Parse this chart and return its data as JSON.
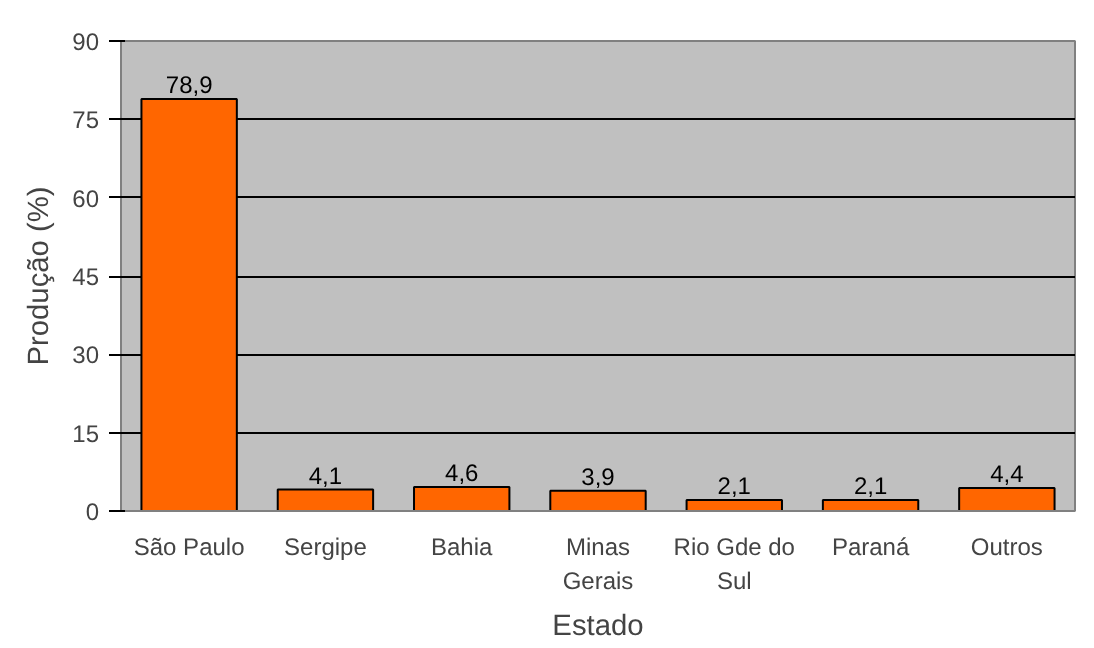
{
  "chart_data": {
    "type": "bar",
    "xlabel": "Estado",
    "ylabel": "Produção (%)",
    "categories": [
      "São Paulo",
      "Sergipe",
      "Bahia",
      "Minas Gerais",
      "Rio Gde do Sul",
      "Paraná",
      "Outros"
    ],
    "values": [
      78.9,
      4.1,
      4.6,
      3.9,
      2.1,
      2.1,
      4.4
    ],
    "value_labels": [
      "78,9",
      "4,1",
      "4,6",
      "3,9",
      "2,1",
      "2,1",
      "4,4"
    ],
    "color": "#ff6600",
    "ylim": [
      0,
      90
    ],
    "yticks": [
      0,
      15,
      30,
      45,
      60,
      75,
      90
    ],
    "grid": "y"
  }
}
